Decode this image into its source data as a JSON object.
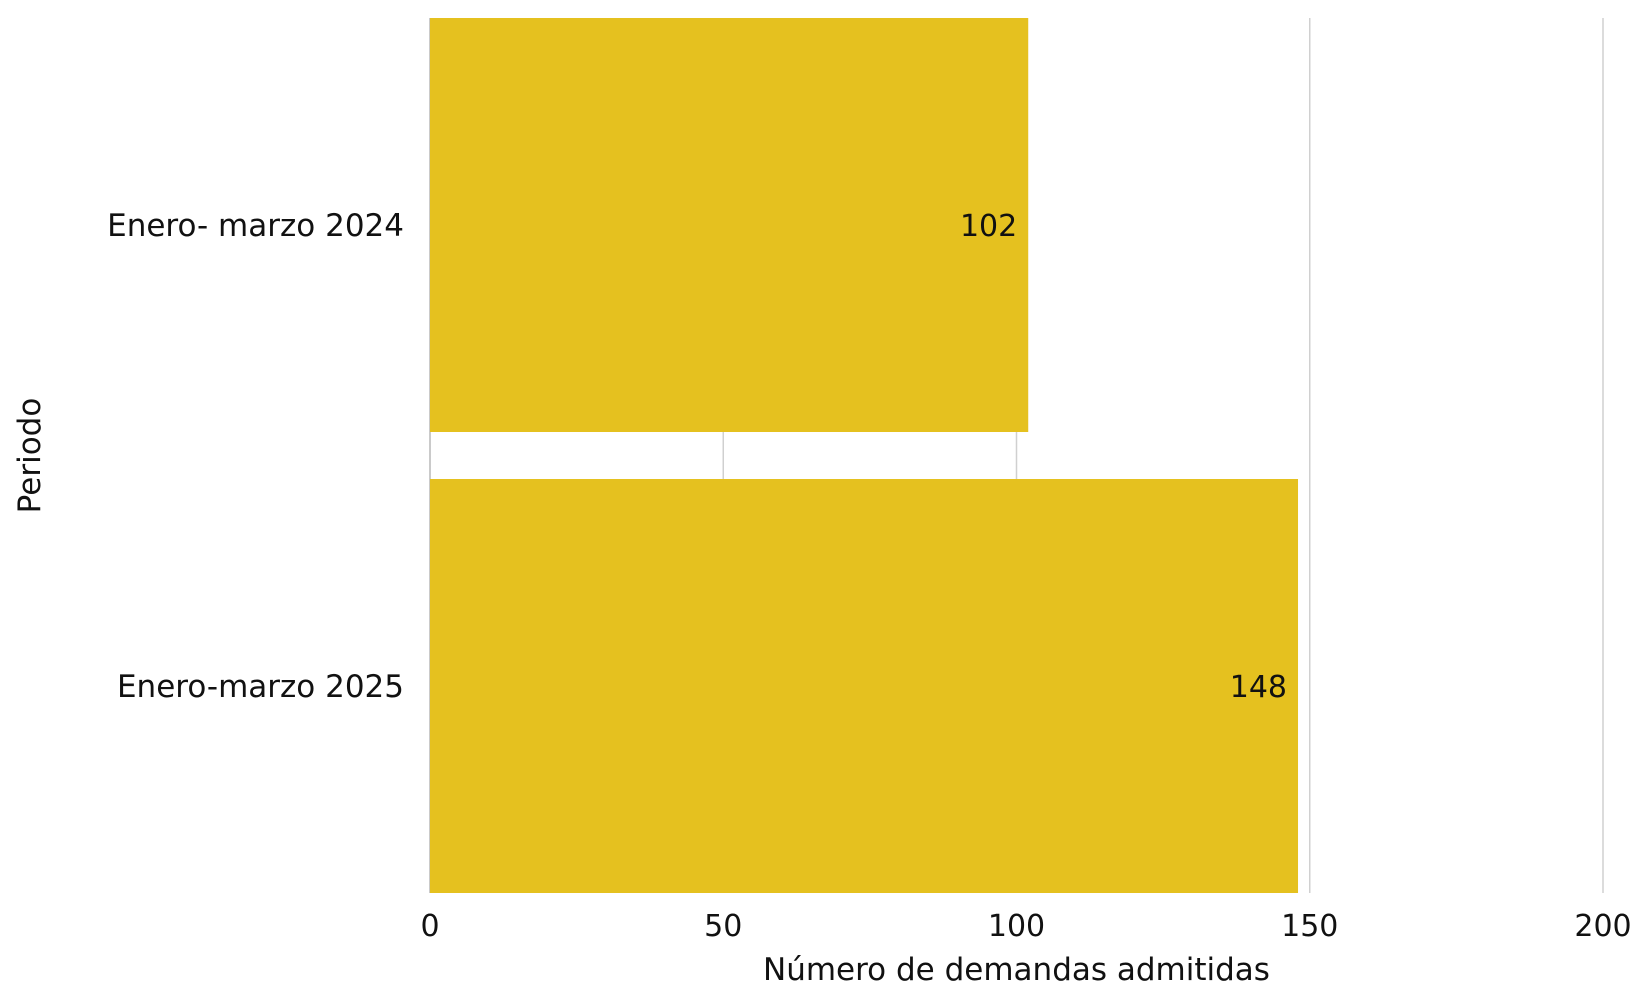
{
  "chart_data": {
    "type": "bar",
    "orientation": "horizontal",
    "categories": [
      "Enero- marzo 2024",
      "Enero-marzo 2025"
    ],
    "values": [
      102,
      148
    ],
    "data_labels": [
      "102",
      "148"
    ],
    "xlabel": "Número de demandas admitidas",
    "ylabel": "Periodo",
    "xlim": [
      0,
      200
    ],
    "xticks": [
      0,
      50,
      100,
      150,
      200
    ],
    "xtick_labels": [
      "0",
      "50",
      "100",
      "150",
      "200"
    ],
    "grid": "vertical",
    "legend": "none",
    "bar_color": "#E5C11F"
  }
}
